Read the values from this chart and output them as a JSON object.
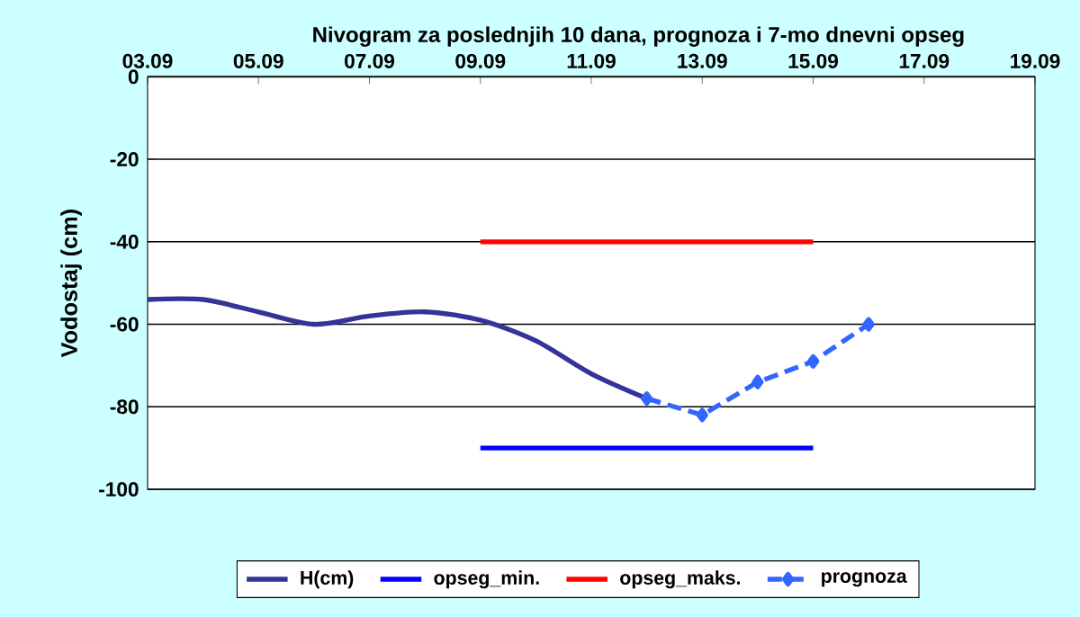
{
  "chart_data": {
    "type": "line",
    "title": "Nivogram za poslednjih 10 dana, prognoza i 7-mo dnevni opseg",
    "ylabel": "Vodostaj (cm)",
    "xlim": [
      "--09-03",
      "--09-19"
    ],
    "xticks": [
      {
        "value": "--09-03",
        "label": "03.09"
      },
      {
        "value": "--09-05",
        "label": "05.09"
      },
      {
        "value": "--09-07",
        "label": "07.09"
      },
      {
        "value": "--09-09",
        "label": "09.09"
      },
      {
        "value": "--09-11",
        "label": "11.09"
      },
      {
        "value": "--09-13",
        "label": "13.09"
      },
      {
        "value": "--09-15",
        "label": "15.09"
      },
      {
        "value": "--09-17",
        "label": "17.09"
      },
      {
        "value": "--09-19",
        "label": "19.09"
      }
    ],
    "ylim": [
      -100,
      0
    ],
    "yticks": [
      0,
      -20,
      -40,
      -60,
      -80,
      -100
    ],
    "grid": "y",
    "legend": "bottom",
    "series": [
      {
        "name": "H(cm)",
        "color": "#333399",
        "x": [
          "--09-03",
          "--09-04",
          "--09-05",
          "--09-06",
          "--09-07",
          "--09-08",
          "--09-09",
          "--09-10",
          "--09-11",
          "--09-12"
        ],
        "values": [
          -54,
          -54,
          -57,
          -60,
          -58,
          -57,
          -59,
          -64,
          -72,
          -78
        ]
      },
      {
        "name": "opseg_min.",
        "color": "#0000ff",
        "x": [
          "--09-09",
          "--09-15"
        ],
        "values": [
          -90,
          -90
        ]
      },
      {
        "name": "opseg_maks.",
        "color": "#ff0000",
        "x": [
          "--09-09",
          "--09-15"
        ],
        "values": [
          -40,
          -40
        ]
      },
      {
        "name": "prognoza",
        "color": "#3366ff",
        "x": [
          "--09-12",
          "--09-13",
          "--09-14",
          "--09-15",
          "--09-16"
        ],
        "values": [
          -78,
          -82,
          -74,
          -69,
          -60
        ],
        "line_style": "dashed",
        "marker": "diamond"
      }
    ]
  }
}
